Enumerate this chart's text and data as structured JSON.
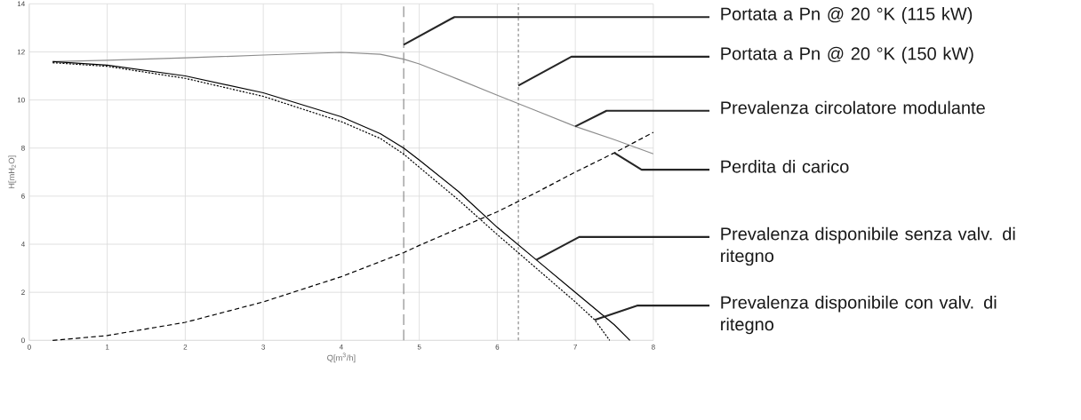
{
  "chart_data": {
    "type": "line",
    "xlabel": "Q[m$^{3}$/h]",
    "ylabel": "H[mH$_{2}$O]",
    "xlim": [
      0,
      8
    ],
    "ylim": [
      0,
      14
    ],
    "xticks": [
      0,
      1,
      2,
      3,
      4,
      5,
      6,
      7,
      8
    ],
    "yticks": [
      0,
      2,
      4,
      6,
      8,
      10,
      12,
      14
    ],
    "grid": true,
    "series": [
      {
        "name": "Prevalenza circolatore modulante",
        "color": "#8c8c8c",
        "line_style": "solid",
        "x": [
          0.3,
          1,
          2,
          3,
          4,
          4.5,
          4.8,
          5,
          5.5,
          6,
          6.5,
          7,
          7.5,
          8
        ],
        "values": [
          11.6,
          11.65,
          11.75,
          11.87,
          11.98,
          11.9,
          11.7,
          11.5,
          10.86,
          10.2,
          9.55,
          8.9,
          8.35,
          7.76
        ]
      },
      {
        "name": "Perdita di carico",
        "color": "#000000",
        "line_style": "dashed",
        "x": [
          0.3,
          1,
          2,
          3,
          4,
          4.8,
          5,
          5.5,
          6,
          6.5,
          7,
          7.5,
          8
        ],
        "values": [
          0,
          0.2,
          0.75,
          1.6,
          2.65,
          3.65,
          3.95,
          4.65,
          5.35,
          6.15,
          7.0,
          7.8,
          8.65
        ]
      },
      {
        "name": "Prevalenza disponibile senza valv. di ritegno",
        "color": "#000000",
        "line_style": "solid",
        "x": [
          0.3,
          1,
          2,
          3,
          4,
          4.5,
          4.8,
          5,
          5.5,
          6,
          6.5,
          7,
          7.5,
          7.7
        ],
        "values": [
          11.6,
          11.45,
          11.0,
          10.3,
          9.3,
          8.6,
          8.0,
          7.5,
          6.2,
          4.7,
          3.35,
          2.0,
          0.65,
          0
        ]
      },
      {
        "name": "Prevalenza disponibile con valv. di ritegno",
        "color": "#000000",
        "line_style": "dotted",
        "x": [
          0.3,
          1,
          2,
          3,
          4,
          4.5,
          4.8,
          5,
          5.5,
          6,
          6.5,
          7,
          7.25,
          7.44
        ],
        "values": [
          11.55,
          11.4,
          10.9,
          10.15,
          9.1,
          8.4,
          7.75,
          7.2,
          5.85,
          4.4,
          3.0,
          1.6,
          0.85,
          0
        ]
      }
    ],
    "ref_lines": [
      {
        "axis": "x",
        "value": 4.8,
        "label": "Portata a Pn @ 20 °K (115 kW)",
        "color": "#7f7f7f",
        "line_style": "dashed"
      },
      {
        "axis": "x",
        "value": 6.27,
        "label": "Portata a Pn @ 20 °K (150 kW)",
        "color": "#7f7f7f",
        "line_style": "dotted"
      }
    ]
  }
}
